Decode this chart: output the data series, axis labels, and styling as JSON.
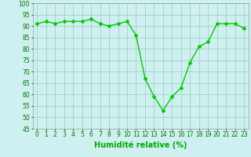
{
  "x": [
    0,
    1,
    2,
    3,
    4,
    5,
    6,
    7,
    8,
    9,
    10,
    11,
    12,
    13,
    14,
    15,
    16,
    17,
    18,
    19,
    20,
    21,
    22,
    23
  ],
  "y": [
    91,
    92,
    91,
    92,
    92,
    92,
    93,
    91,
    90,
    91,
    92,
    86,
    67,
    59,
    53,
    59,
    63,
    74,
    81,
    83,
    91,
    91,
    91,
    89
  ],
  "line_color": "#00cc00",
  "marker": "D",
  "marker_size": 2.0,
  "bg_color": "#cff0f0",
  "grid_color": "#99ccbb",
  "xlabel": "Humidité relative (%)",
  "xlabel_color": "#00aa00",
  "xlabel_fontsize": 7,
  "ylim": [
    45,
    100
  ],
  "yticks": [
    45,
    50,
    55,
    60,
    65,
    70,
    75,
    80,
    85,
    90,
    95,
    100
  ],
  "xticks": [
    0,
    1,
    2,
    3,
    4,
    5,
    6,
    7,
    8,
    9,
    10,
    11,
    12,
    13,
    14,
    15,
    16,
    17,
    18,
    19,
    20,
    21,
    22,
    23
  ],
  "tick_fontsize": 5.5,
  "tick_color": "#007700",
  "line_width": 1.0
}
